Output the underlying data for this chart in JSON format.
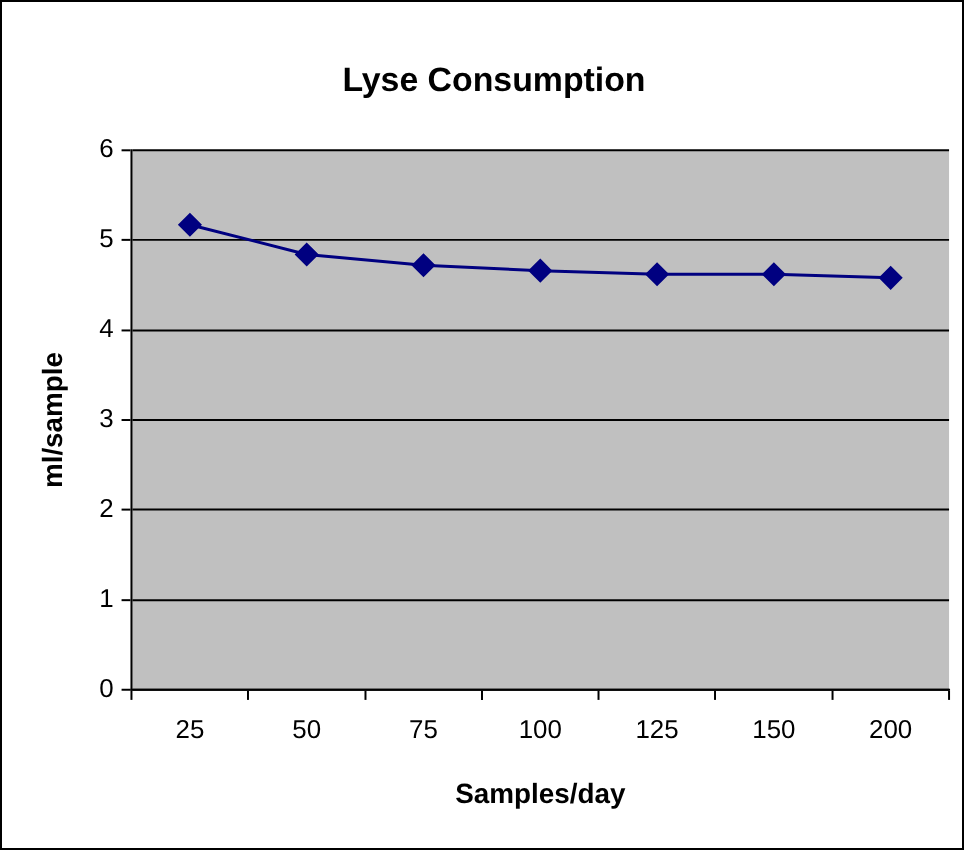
{
  "chart_data": {
    "type": "line",
    "title": "Lyse Consumption",
    "xlabel": "Samples/day",
    "ylabel": "ml/sample",
    "categories": [
      "25",
      "50",
      "75",
      "100",
      "125",
      "150",
      "200"
    ],
    "series": [
      {
        "color": "#000080",
        "values": [
          5.17,
          4.84,
          4.72,
          4.66,
          4.62,
          4.62,
          4.58
        ]
      }
    ],
    "ylim": [
      0,
      6
    ],
    "yticks": [
      0,
      1,
      2,
      3,
      4,
      5,
      6
    ],
    "grid": "y",
    "marker": "diamond",
    "line_style": "solid"
  }
}
